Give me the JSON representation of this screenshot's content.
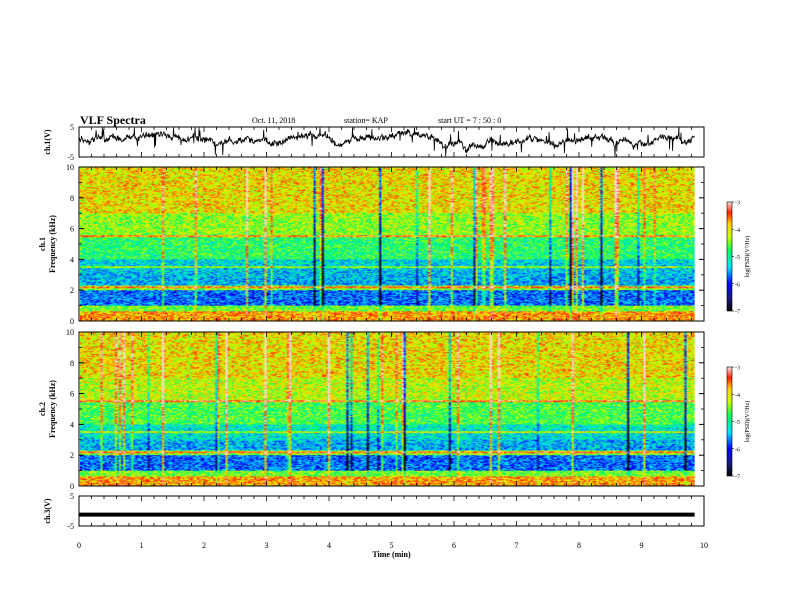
{
  "header": {
    "title": "VLF Spectra",
    "date": "Oct. 11, 2018",
    "station": "station= KAP",
    "start": "start  UT =  7 : 50 : 0"
  },
  "chart_data": [
    {
      "type": "line",
      "panel": "ch1-waveform",
      "ylabel": "ch.1(V)",
      "ylim": [
        -5,
        5
      ],
      "y_ticks": [
        "5",
        "-5"
      ],
      "xlim": [
        0,
        10
      ]
    },
    {
      "type": "heatmap",
      "panel": "ch1-spectrogram",
      "ylabel_top": "ch.1",
      "ylabel": "Frequency (kHz)",
      "ylim": [
        0,
        10
      ],
      "y_ticks": [
        "0",
        "2",
        "4",
        "6",
        "8",
        "10"
      ],
      "xlim": [
        0,
        9.85
      ],
      "colorbar": {
        "label": "log(PSD)(V²/Hz)",
        "range": [
          -7,
          -3
        ],
        "ticks": [
          "-3",
          "-4",
          "-5",
          "-6",
          "-7"
        ]
      }
    },
    {
      "type": "heatmap",
      "panel": "ch2-spectrogram",
      "ylabel_top": "ch.2",
      "ylabel": "Frequency (kHz)",
      "ylim": [
        0,
        10
      ],
      "y_ticks": [
        "0",
        "2",
        "4",
        "6",
        "8",
        "10"
      ],
      "xlim": [
        0,
        9.85
      ],
      "colorbar": {
        "label": "log(PSD)(V²/Hz)",
        "range": [
          -7,
          -3
        ],
        "ticks": [
          "-3",
          "-4",
          "-5",
          "-6",
          "-7"
        ]
      }
    },
    {
      "type": "line",
      "panel": "ch3-waveform",
      "ylabel": "ch.3(V)",
      "ylim": [
        -5,
        5
      ],
      "y_ticks": [
        "5",
        "-5"
      ],
      "y_values": [
        -1.2,
        -1.2
      ],
      "x": [
        0,
        9.85
      ],
      "xlim": [
        0,
        10
      ]
    }
  ],
  "x_axis": {
    "label": "Time (min)",
    "ticks": [
      "0",
      "1",
      "2",
      "3",
      "4",
      "5",
      "6",
      "7",
      "8",
      "9",
      "10"
    ],
    "range": [
      0,
      10
    ]
  }
}
